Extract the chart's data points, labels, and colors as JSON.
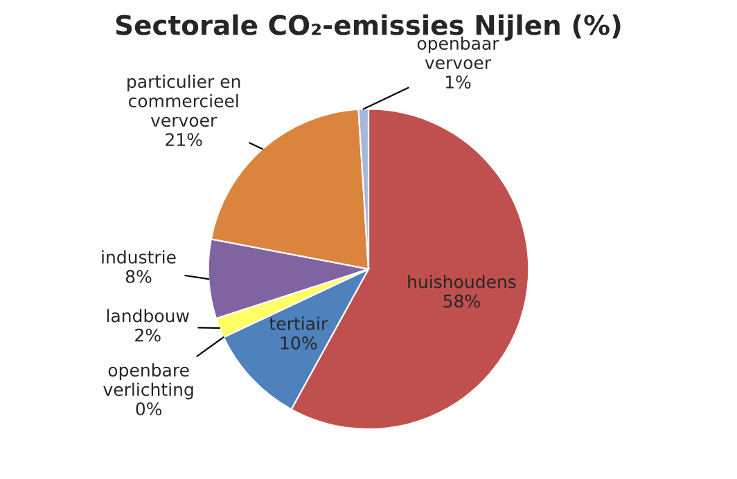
{
  "chart_data": {
    "type": "pie",
    "title": "Sectorale CO₂-emissies Nijlen (%)",
    "categories": [
      "huishoudens",
      "tertiair",
      "openbare verlichting",
      "landbouw",
      "industrie",
      "particulier en commercieel vervoer",
      "openbaar vervoer"
    ],
    "values": [
      58,
      10,
      0,
      2,
      8,
      21,
      1
    ],
    "value_labels": [
      "58%",
      "10%",
      "0%",
      "2%",
      "8%",
      "21%",
      "1%"
    ],
    "colors": [
      "#c0504d",
      "#4f81bd",
      "#9bbb59",
      "#ffff66",
      "#8064a2",
      "#db843d",
      "#a5b8d9"
    ],
    "legend": false
  }
}
